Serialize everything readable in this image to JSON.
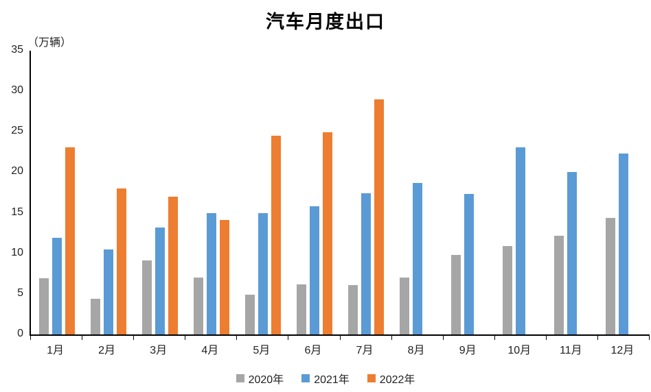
{
  "page": {
    "background": "#ffffff"
  },
  "chart_data": {
    "type": "bar",
    "title": "汽车月度出口",
    "unit_label": "（万辆）",
    "categories": [
      "1月",
      "2月",
      "3月",
      "4月",
      "5月",
      "6月",
      "7月",
      "8月",
      "9月",
      "10月",
      "11月",
      "12月"
    ],
    "series": [
      {
        "name": "2020年",
        "color": "#A6A6A6",
        "values": [
          6.9,
          4.4,
          9.1,
          7.0,
          4.9,
          6.2,
          6.1,
          7.0,
          9.8,
          10.9,
          12.2,
          14.4
        ]
      },
      {
        "name": "2021年",
        "color": "#5B9BD5",
        "values": [
          11.9,
          10.5,
          13.2,
          15.0,
          15.0,
          15.8,
          17.4,
          18.7,
          17.3,
          23.1,
          20.0,
          22.3
        ]
      },
      {
        "name": "2022年",
        "color": "#ED7D31",
        "values": [
          23.1,
          18.0,
          17.0,
          14.1,
          24.5,
          24.9,
          29.0,
          null,
          null,
          null,
          null,
          null
        ]
      }
    ],
    "ylim": [
      0,
      35
    ],
    "yticks": [
      0,
      5,
      10,
      15,
      20,
      25,
      30,
      35
    ],
    "grid": false,
    "legend_position": "bottom",
    "axis_color": "#000000",
    "text_color": "#1f1f1f"
  }
}
